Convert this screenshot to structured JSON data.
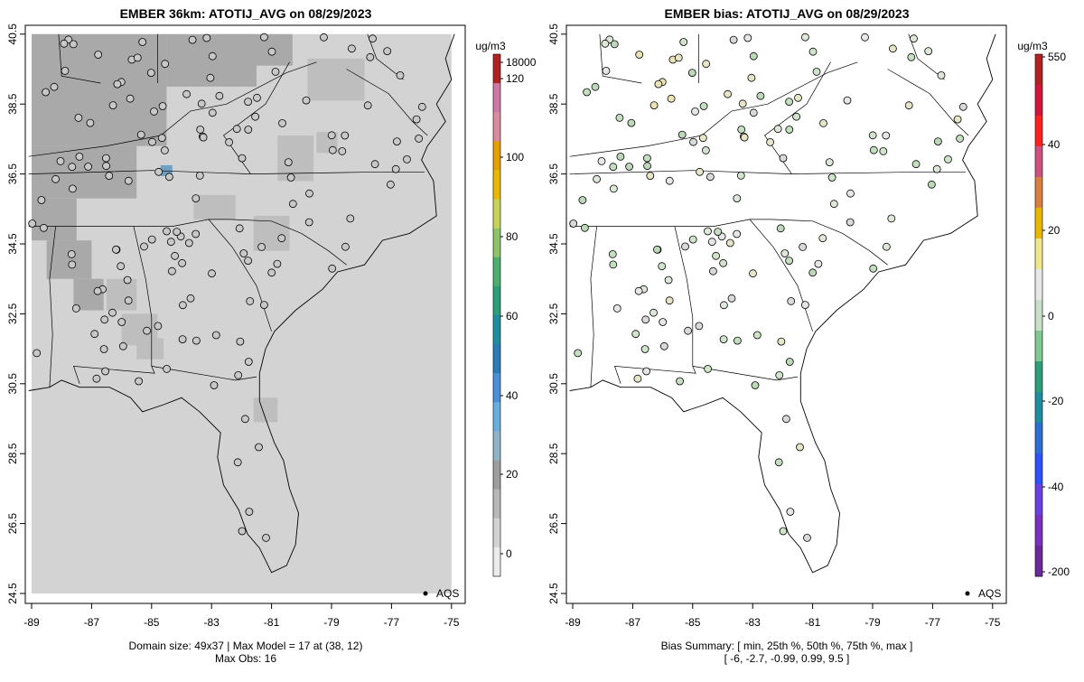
{
  "colors": {
    "background": "#d3d3d3",
    "grid_dark": "#a9a9a9",
    "grid_mid": "#bebebe",
    "site_fill": "#c8c8c8",
    "outline": "#000000"
  },
  "legend_label": "AQS",
  "chart_data": [
    {
      "type": "heatmap",
      "title": "EMBER 36km: ATOTIJ_AVG on 08/29/2023",
      "xlim": [
        -89.2,
        -74.8
      ],
      "ylim": [
        24.3,
        40.8
      ],
      "x_ticks": [
        "-89",
        "-87",
        "-85",
        "-83",
        "-81",
        "-79",
        "-77",
        "-75"
      ],
      "y_ticks": [
        "24.5",
        "26.5",
        "28.5",
        "30.5",
        "32.5",
        "34.5",
        "36.5",
        "38.5",
        "40.5"
      ],
      "colorbar": {
        "unit": "ug/m3",
        "ticks": [
          "18000",
          "120",
          "100",
          "80",
          "60",
          "40",
          "20",
          "0"
        ],
        "colors": [
          "#b22222",
          "#cc79a7",
          "#d98ca0",
          "#e69f00",
          "#e6b800",
          "#c7d45a",
          "#8fc36a",
          "#4caf70",
          "#2e9e7a",
          "#1f8fa0",
          "#2b7bb9",
          "#4a90d9",
          "#6aaede",
          "#8fb3c8",
          "#9e9e9e",
          "#b8b8b8",
          "#d3d3d3",
          "#ebebeb"
        ]
      },
      "footer": [
        "Domain size: 49x37 | Max Model = 17 at (38, 12)",
        "Max Obs: 16"
      ],
      "max_model": {
        "value": 17,
        "lon": -84.5,
        "lat": 36.6
      },
      "site_count": 150
    },
    {
      "type": "scatter",
      "title": "EMBER bias: ATOTIJ_AVG on 08/29/2023",
      "xlim": [
        -89.2,
        -74.8
      ],
      "ylim": [
        24.3,
        40.8
      ],
      "x_ticks": [
        "-89",
        "-87",
        "-85",
        "-83",
        "-81",
        "-79",
        "-77",
        "-75"
      ],
      "y_ticks": [
        "24.5",
        "26.5",
        "28.5",
        "30.5",
        "32.5",
        "34.5",
        "36.5",
        "38.5",
        "40.5"
      ],
      "colorbar": {
        "unit": "ug/m3",
        "ticks": [
          "550",
          "40",
          "20",
          "0",
          "-20",
          "-40",
          "-200"
        ],
        "colors": [
          "#b22222",
          "#d4143a",
          "#ff2020",
          "#cc5080",
          "#d98040",
          "#e6b800",
          "#f0e68c",
          "#e8e8e8",
          "#c8e0c8",
          "#80c890",
          "#2e9e7a",
          "#1f8fa0",
          "#2b6fd4",
          "#3050ff",
          "#6a40e0",
          "#7a30c0",
          "#6a2a9a"
        ]
      },
      "bias_summary": {
        "label": "Bias Summary: [ min, 25th %, 50th %, 75th %, max ]",
        "values_text": "[ -6,   -2.7,   -0.99,   0.99,   9.5 ]",
        "min": -6,
        "p25": -2.7,
        "p50": -0.99,
        "p75": 0.99,
        "max": 9.5
      }
    }
  ]
}
